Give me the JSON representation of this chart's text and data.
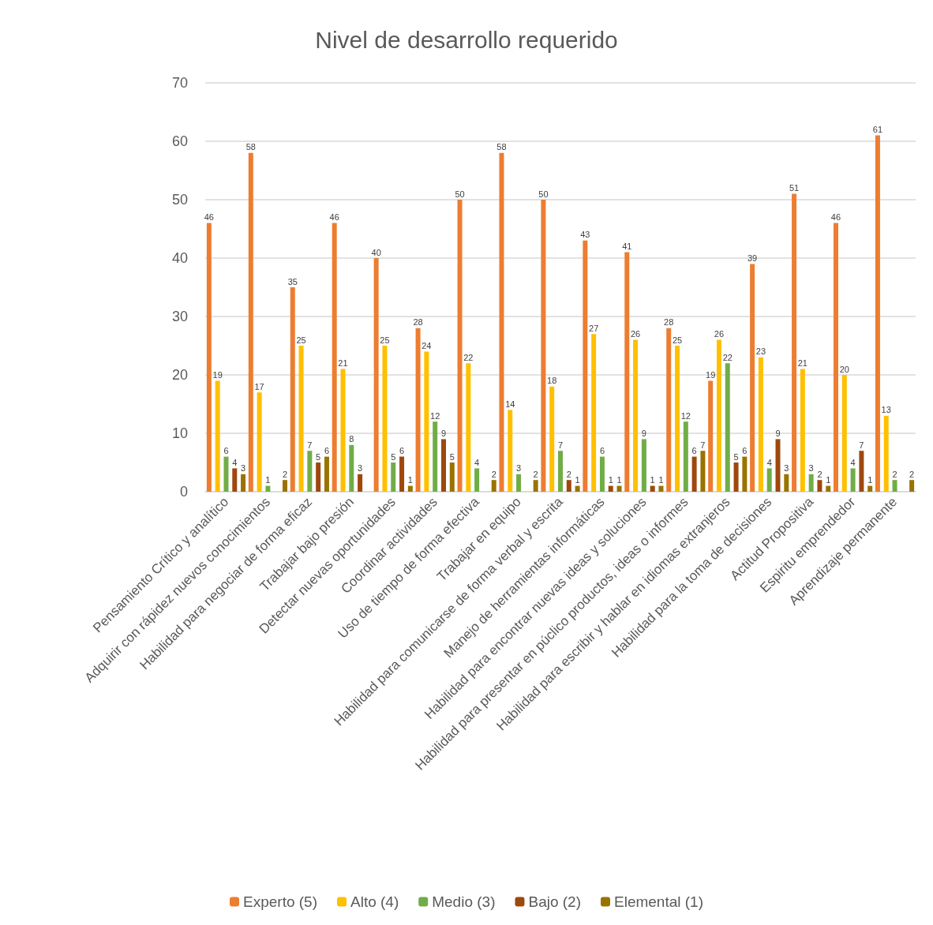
{
  "chart_data": {
    "type": "bar",
    "title": "Nivel de desarrollo requerido",
    "categories": [
      "Pensamiento Crítico y analítico",
      "Adquirir con rápidez nuevos conocimientos",
      "Habilidad para negociar de forma eficaz",
      "Trabajar bajo presión",
      "Detectar nuevas oportunidades",
      "Coordinar actividades",
      "Uso de tiempo de forma efectiva",
      "Trabajar en equipo",
      "Habilidad para comunicarse de forma verbal y escrita",
      "Manejo de herramientas informáticas",
      "Habilidad para encontrar nuevas ideas y soluciones",
      "Habilidad para presentar en púclico productos, ideas o informes",
      "Habilidad para escribir y hablar en idiomas extranjeros",
      "Habilidad para la toma de decisiones",
      "Actitud Propositiva",
      "Espiritu emprendedor",
      "Aprendizaje permanente"
    ],
    "series": [
      {
        "name": "Experto (5)",
        "color": "#ed7d31",
        "values": [
          46,
          58,
          35,
          46,
          40,
          28,
          50,
          58,
          50,
          43,
          41,
          28,
          19,
          39,
          51,
          46,
          61
        ]
      },
      {
        "name": "Alto (4)",
        "color": "#ffc000",
        "values": [
          19,
          17,
          25,
          21,
          25,
          24,
          22,
          14,
          18,
          27,
          26,
          25,
          26,
          23,
          21,
          20,
          13
        ]
      },
      {
        "name": "Medio (3)",
        "color": "#70ad47",
        "values": [
          6,
          1,
          7,
          8,
          5,
          12,
          4,
          3,
          7,
          6,
          9,
          12,
          22,
          4,
          3,
          4,
          2
        ]
      },
      {
        "name": "Bajo (2)",
        "color": "#9e480e",
        "values": [
          4,
          null,
          5,
          3,
          6,
          9,
          null,
          null,
          2,
          1,
          1,
          6,
          5,
          9,
          2,
          7,
          null
        ]
      },
      {
        "name": "Elemental (1)",
        "color": "#997300",
        "values": [
          3,
          2,
          6,
          null,
          1,
          5,
          2,
          2,
          1,
          1,
          1,
          7,
          6,
          3,
          1,
          1,
          2
        ]
      }
    ],
    "ylim": [
      0,
      70
    ],
    "yticks": [
      0,
      10,
      20,
      30,
      40,
      50,
      60,
      70
    ],
    "grid": "y",
    "legend": "bottom",
    "data_labels": true
  }
}
